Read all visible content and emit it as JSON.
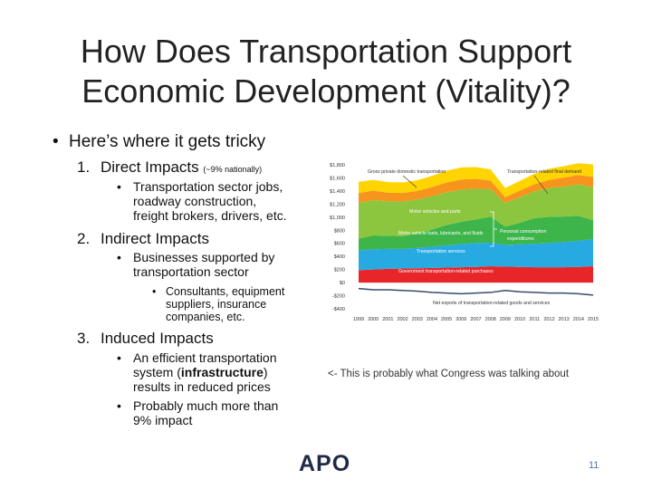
{
  "slide": {
    "title": [
      "How Does Transportation Support",
      "Economic Development (Vitality)?"
    ],
    "bullet": "Here’s where it gets tricky",
    "items": [
      {
        "number": "1.",
        "heading": "Direct Impacts",
        "note": "(~9% nationally)",
        "sub": [
          "Transportation sector jobs,",
          "roadway construction,",
          "freight brokers, drivers, etc."
        ]
      },
      {
        "number": "2.",
        "heading": "Indirect Impacts",
        "sub": [
          "Businesses supported by",
          "transportation sector"
        ],
        "subsub": [
          "Consultants, equipment",
          "suppliers, insurance",
          "companies, etc."
        ]
      },
      {
        "number": "3.",
        "heading": "Induced Impacts",
        "sub1": [
          "An efficient transportation",
          "system (",
          "infrastructure",
          ")",
          "results in reduced prices"
        ],
        "sub2": [
          "Probably much more than",
          "9% impact"
        ]
      }
    ],
    "comment": "<- This is probably what Congress was talking about",
    "logo": "APO",
    "page": "11"
  },
  "chart_data": {
    "type": "stacked_area",
    "categories": [
      "1999",
      "2000",
      "2001",
      "2002",
      "2003",
      "2004",
      "2005",
      "2006",
      "2007",
      "2008",
      "2009",
      "2010",
      "2011",
      "2012",
      "2013",
      "2014",
      "2015"
    ],
    "series": [
      {
        "name": "Government transportation-related purchases",
        "color": "#e8262a",
        "values": [
          190,
          200,
          210,
          215,
          220,
          225,
          230,
          235,
          240,
          250,
          245,
          240,
          235,
          235,
          235,
          240,
          250
        ]
      },
      {
        "name": "Transportation services",
        "color": "#27a9e1",
        "values": [
          300,
          310,
          305,
          300,
          310,
          325,
          340,
          355,
          365,
          360,
          330,
          345,
          360,
          370,
          385,
          400,
          415
        ]
      },
      {
        "name": "Motor vehicle fuels, lubricants, and fluids",
        "color": "#3db54a",
        "values": [
          180,
          210,
          200,
          195,
          220,
          260,
          310,
          340,
          360,
          400,
          280,
          330,
          390,
          400,
          390,
          380,
          290
        ]
      },
      {
        "name": "Motor vehicles and parts",
        "color": "#8cc63f",
        "values": [
          550,
          540,
          530,
          530,
          520,
          510,
          500,
          490,
          470,
          420,
          360,
          390,
          410,
          440,
          460,
          480,
          500
        ]
      },
      {
        "color": "#f7941d",
        "values": [
          150,
          145,
          130,
          130,
          130,
          140,
          150,
          155,
          150,
          130,
          90,
          100,
          110,
          125,
          135,
          145,
          160
        ]
      },
      {
        "name": "Gross private domestic transportation",
        "color": "#ffd400",
        "values": [
          170,
          165,
          160,
          160,
          165,
          170,
          180,
          185,
          180,
          170,
          140,
          150,
          160,
          170,
          175,
          180,
          190
        ]
      }
    ],
    "net_exports": {
      "name": "Net exports of transportation-related goods and services",
      "color": "#3b4a6b",
      "values": [
        -90,
        -110,
        -110,
        -120,
        -130,
        -150,
        -160,
        -170,
        -160,
        -150,
        -120,
        -140,
        -150,
        -160,
        -160,
        -170,
        -190
      ]
    },
    "annotations": {
      "final_demand": "Transportation-related final demand",
      "pce": [
        "Personal consumption",
        "expenditures"
      ]
    },
    "ylim": [
      -400,
      1800
    ],
    "yticks": [
      {
        "value": -400,
        "label": "-$400"
      },
      {
        "value": -200,
        "label": "-$200"
      },
      {
        "value": 0,
        "label": "$0"
      },
      {
        "value": 200,
        "label": "$200"
      },
      {
        "value": 400,
        "label": "$400"
      },
      {
        "value": 600,
        "label": "$600"
      },
      {
        "value": 800,
        "label": "$800"
      },
      {
        "value": 1000,
        "label": "$1,000"
      },
      {
        "value": 1200,
        "label": "$1,200"
      },
      {
        "value": 1400,
        "label": "$1,400"
      },
      {
        "value": 1600,
        "label": "$1,600"
      },
      {
        "value": 1800,
        "label": "$1,800"
      }
    ],
    "grid": false
  }
}
